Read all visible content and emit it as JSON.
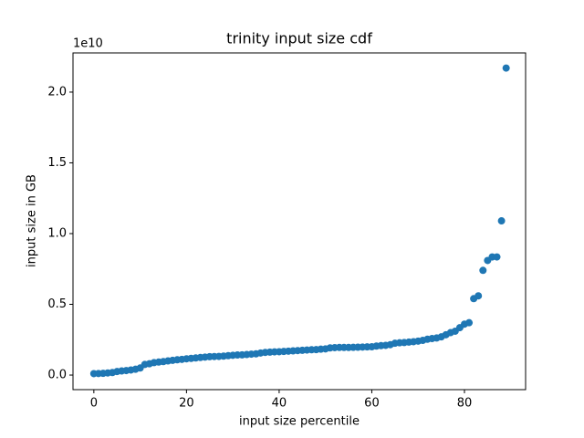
{
  "chart_data": {
    "type": "scatter",
    "title": "trinity input size cdf",
    "x_label": "input size percentile",
    "y_label": "input size in GB",
    "y_offset_label": "1e10",
    "color": "#1f77b4",
    "x": [
      0,
      1,
      2,
      3,
      4,
      5,
      6,
      7,
      8,
      9,
      10,
      11,
      12,
      13,
      14,
      15,
      16,
      17,
      18,
      19,
      20,
      21,
      22,
      23,
      24,
      25,
      26,
      27,
      28,
      29,
      30,
      31,
      32,
      33,
      34,
      35,
      36,
      37,
      38,
      39,
      40,
      41,
      42,
      43,
      44,
      45,
      46,
      47,
      48,
      49,
      50,
      51,
      52,
      53,
      54,
      55,
      56,
      57,
      58,
      59,
      60,
      61,
      62,
      63,
      64,
      65,
      66,
      67,
      68,
      69,
      70,
      71,
      72,
      73,
      74,
      75,
      76,
      77,
      78,
      79,
      80,
      81,
      82,
      83,
      84,
      85,
      86,
      87,
      88,
      89
    ],
    "values": [
      100000000,
      110000000,
      120000000,
      150000000,
      180000000,
      250000000,
      290000000,
      320000000,
      360000000,
      410000000,
      500000000,
      750000000,
      800000000,
      880000000,
      920000000,
      950000000,
      1000000000,
      1040000000,
      1080000000,
      1110000000,
      1150000000,
      1180000000,
      1210000000,
      1240000000,
      1270000000,
      1300000000,
      1310000000,
      1320000000,
      1340000000,
      1370000000,
      1400000000,
      1420000000,
      1430000000,
      1450000000,
      1480000000,
      1500000000,
      1560000000,
      1600000000,
      1620000000,
      1640000000,
      1650000000,
      1670000000,
      1690000000,
      1710000000,
      1730000000,
      1750000000,
      1770000000,
      1790000000,
      1800000000,
      1830000000,
      1850000000,
      1920000000,
      1940000000,
      1950000000,
      1950000000,
      1950000000,
      1960000000,
      1970000000,
      1980000000,
      1990000000,
      2000000000,
      2050000000,
      2080000000,
      2100000000,
      2150000000,
      2250000000,
      2280000000,
      2300000000,
      2330000000,
      2360000000,
      2400000000,
      2450000000,
      2530000000,
      2580000000,
      2620000000,
      2700000000,
      2850000000,
      3000000000,
      3100000000,
      3350000000,
      3600000000,
      3700000000,
      5400000000,
      5600000000,
      7400000000,
      8100000000,
      8350000000,
      8350000000,
      10900000000,
      21700000000
    ],
    "xlim": [
      -4.5,
      93.2
    ],
    "xticks": [
      0,
      20,
      40,
      60,
      80
    ],
    "ylim": [
      -1030000000,
      22770000000
    ],
    "yticks": [
      {
        "value": 0,
        "label": "0.0"
      },
      {
        "value": 5000000000,
        "label": "0.5"
      },
      {
        "value": 10000000000,
        "label": "1.0"
      },
      {
        "value": 15000000000,
        "label": "1.5"
      },
      {
        "value": 20000000000,
        "label": "2.0"
      }
    ]
  }
}
